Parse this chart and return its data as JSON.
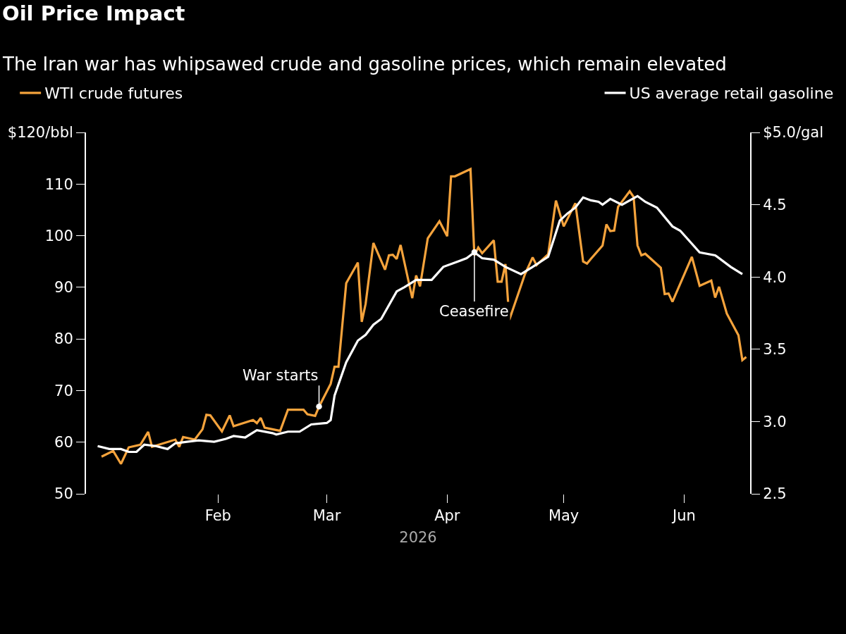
{
  "chart_data": {
    "type": "line",
    "title": "Oil Price Impact",
    "subtitle": "The Iran war has whipsawed crude and gasoline prices, which remain elevated",
    "xlabel": "2026",
    "series": [
      {
        "name": "WTI crude futures",
        "color": "#f5a33c",
        "x": [
          "2026-01-02",
          "2026-01-05",
          "2026-01-07",
          "2026-01-09",
          "2026-01-12",
          "2026-01-14",
          "2026-01-15",
          "2026-01-21",
          "2026-01-22",
          "2026-01-23",
          "2026-01-26",
          "2026-01-28",
          "2026-01-29",
          "2026-01-30",
          "2026-02-02",
          "2026-02-04",
          "2026-02-05",
          "2026-02-10",
          "2026-02-11",
          "2026-02-12",
          "2026-02-13",
          "2026-02-17",
          "2026-02-19",
          "2026-02-23",
          "2026-02-24",
          "2026-02-26",
          "2026-02-27",
          "2026-03-02",
          "2026-03-03",
          "2026-03-04",
          "2026-03-06",
          "2026-03-09",
          "2026-03-10",
          "2026-03-11",
          "2026-03-13",
          "2026-03-16",
          "2026-03-17",
          "2026-03-18",
          "2026-03-19",
          "2026-03-20",
          "2026-03-23",
          "2026-03-24",
          "2026-03-25",
          "2026-03-27",
          "2026-03-30",
          "2026-04-01",
          "2026-04-02",
          "2026-04-03",
          "2026-04-07",
          "2026-04-08",
          "2026-04-09",
          "2026-04-10",
          "2026-04-13",
          "2026-04-14",
          "2026-04-15",
          "2026-04-16",
          "2026-04-17",
          "2026-04-21",
          "2026-04-23",
          "2026-04-24",
          "2026-04-27",
          "2026-04-29",
          "2026-05-01",
          "2026-05-04",
          "2026-05-06",
          "2026-05-07",
          "2026-05-08",
          "2026-05-11",
          "2026-05-12",
          "2026-05-13",
          "2026-05-14",
          "2026-05-15",
          "2026-05-18",
          "2026-05-19",
          "2026-05-20",
          "2026-05-21",
          "2026-05-22",
          "2026-05-26",
          "2026-05-27",
          "2026-05-28",
          "2026-05-29",
          "2026-06-03",
          "2026-06-05",
          "2026-06-08",
          "2026-06-09",
          "2026-06-10",
          "2026-06-12",
          "2026-06-15",
          "2026-06-16",
          "2026-06-17"
        ],
        "values": [
          57.2,
          58.3,
          55.8,
          59.0,
          59.5,
          62.0,
          59.1,
          60.5,
          59.1,
          61.0,
          60.5,
          62.5,
          65.3,
          65.2,
          62.1,
          65.2,
          63.1,
          64.3,
          63.7,
          64.7,
          62.8,
          62.2,
          66.3,
          66.3,
          65.4,
          65.1,
          66.9,
          71.3,
          74.6,
          74.6,
          90.8,
          94.8,
          83.3,
          86.8,
          98.6,
          93.4,
          96.2,
          96.3,
          95.5,
          98.2,
          87.9,
          92.3,
          90.2,
          99.5,
          102.8,
          99.9,
          111.5,
          111.5,
          112.9,
          96.2,
          97.7,
          96.6,
          99.1,
          91.1,
          91.1,
          94.5,
          83.7,
          92.5,
          95.8,
          94.3,
          96.4,
          106.8,
          101.8,
          106.3,
          95.0,
          94.6,
          95.5,
          98.1,
          102.2,
          100.9,
          101.0,
          105.6,
          108.6,
          107.5,
          98.1,
          96.2,
          96.5,
          93.8,
          88.7,
          88.8,
          87.2,
          95.9,
          90.3,
          91.3,
          88.0,
          90.1,
          84.9,
          80.7,
          75.9,
          76.5
        ]
      },
      {
        "name": "US average retail gasoline",
        "color": "#ffffff",
        "axis": "y2",
        "x": [
          "2026-01-01",
          "2026-01-04",
          "2026-01-07",
          "2026-01-09",
          "2026-01-11",
          "2026-01-13",
          "2026-01-16",
          "2026-01-19",
          "2026-01-21",
          "2026-01-24",
          "2026-01-27",
          "2026-01-31",
          "2026-02-03",
          "2026-02-05",
          "2026-02-08",
          "2026-02-11",
          "2026-02-15",
          "2026-02-16",
          "2026-02-19",
          "2026-02-22",
          "2026-02-25",
          "2026-03-01",
          "2026-03-02",
          "2026-03-03",
          "2026-03-06",
          "2026-03-09",
          "2026-03-11",
          "2026-03-13",
          "2026-03-15",
          "2026-03-19",
          "2026-03-21",
          "2026-03-24",
          "2026-03-28",
          "2026-03-31",
          "2026-04-04",
          "2026-04-06",
          "2026-04-08",
          "2026-04-10",
          "2026-04-13",
          "2026-04-16",
          "2026-04-20",
          "2026-04-23",
          "2026-04-27",
          "2026-04-30",
          "2026-05-02",
          "2026-05-04",
          "2026-05-06",
          "2026-05-08",
          "2026-05-10",
          "2026-05-11",
          "2026-05-13",
          "2026-05-16",
          "2026-05-20",
          "2026-05-22",
          "2026-05-25",
          "2026-05-29",
          "2026-05-31",
          "2026-06-05",
          "2026-06-09",
          "2026-06-13",
          "2026-06-16"
        ],
        "values": [
          2.83,
          2.81,
          2.81,
          2.79,
          2.79,
          2.84,
          2.83,
          2.81,
          2.85,
          2.86,
          2.87,
          2.86,
          2.88,
          2.9,
          2.89,
          2.94,
          2.92,
          2.91,
          2.93,
          2.93,
          2.98,
          2.99,
          3.01,
          3.18,
          3.41,
          3.56,
          3.6,
          3.67,
          3.71,
          3.9,
          3.93,
          3.98,
          3.98,
          4.07,
          4.11,
          4.13,
          4.17,
          4.13,
          4.12,
          4.07,
          4.02,
          4.07,
          4.14,
          4.39,
          4.44,
          4.48,
          4.55,
          4.53,
          4.52,
          4.5,
          4.54,
          4.5,
          4.56,
          4.52,
          4.48,
          4.35,
          4.32,
          4.17,
          4.15,
          4.07,
          4.02
        ]
      }
    ],
    "xlim": [
      "2025-12-29",
      "2026-06-18"
    ],
    "xticks": [
      {
        "value": "2026-02-01",
        "label": "Feb"
      },
      {
        "value": "2026-03-01",
        "label": "Mar"
      },
      {
        "value": "2026-04-01",
        "label": "Apr"
      },
      {
        "value": "2026-05-01",
        "label": "May"
      },
      {
        "value": "2026-06-01",
        "label": "Jun"
      }
    ],
    "ylim": [
      50,
      120
    ],
    "yticks": [
      50,
      60,
      70,
      80,
      90,
      100,
      110,
      {
        "value": 120,
        "label": "$120/bbl"
      }
    ],
    "y2lim": [
      2.5,
      5.0
    ],
    "y2ticks": [
      {
        "value": 2.5,
        "label": "2.5"
      },
      {
        "value": 3.0,
        "label": "3.0"
      },
      {
        "value": 3.5,
        "label": "3.5"
      },
      {
        "value": 4.0,
        "label": "4.0"
      },
      {
        "value": 4.5,
        "label": "4.5"
      },
      {
        "value": 5.0,
        "label": "$5.0/gal"
      }
    ],
    "annotations": [
      {
        "text": "War starts",
        "x": "2026-02-27",
        "y": 66.9
      },
      {
        "text": "Ceasefire",
        "x": "2026-04-08",
        "y": 96.8
      }
    ],
    "legend": "top",
    "grid": false,
    "marker": "none",
    "line_style": "solid"
  }
}
